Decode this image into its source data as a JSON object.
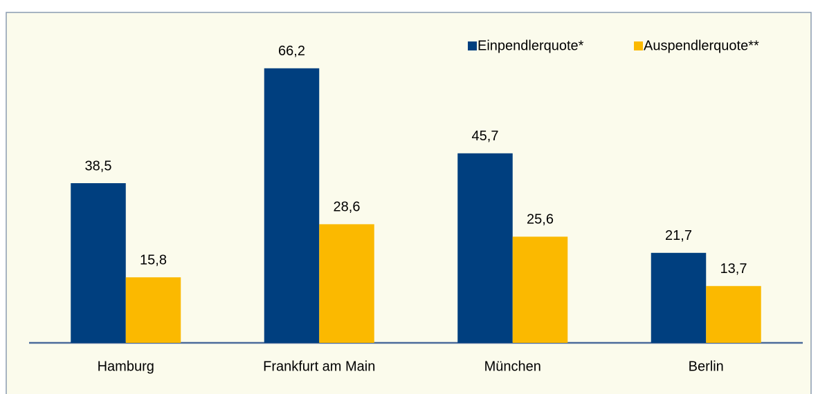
{
  "chart_data": {
    "type": "bar",
    "categories": [
      "Hamburg",
      "Frankfurt am Main",
      "München",
      "Berlin"
    ],
    "series": [
      {
        "name": "Einpendlerquote*",
        "color": "#003f7f",
        "values": [
          38.5,
          66.2,
          45.7,
          21.7
        ],
        "value_labels": [
          "38,5",
          "66,2",
          "45,7",
          "21,7"
        ]
      },
      {
        "name": "Auspendlerquote**",
        "color": "#fbb900",
        "values": [
          15.8,
          28.6,
          25.6,
          13.7
        ],
        "value_labels": [
          "15,8",
          "28,6",
          "25,6",
          "13,7"
        ]
      }
    ],
    "ylim": [
      0,
      70
    ],
    "legend": "top-right"
  }
}
